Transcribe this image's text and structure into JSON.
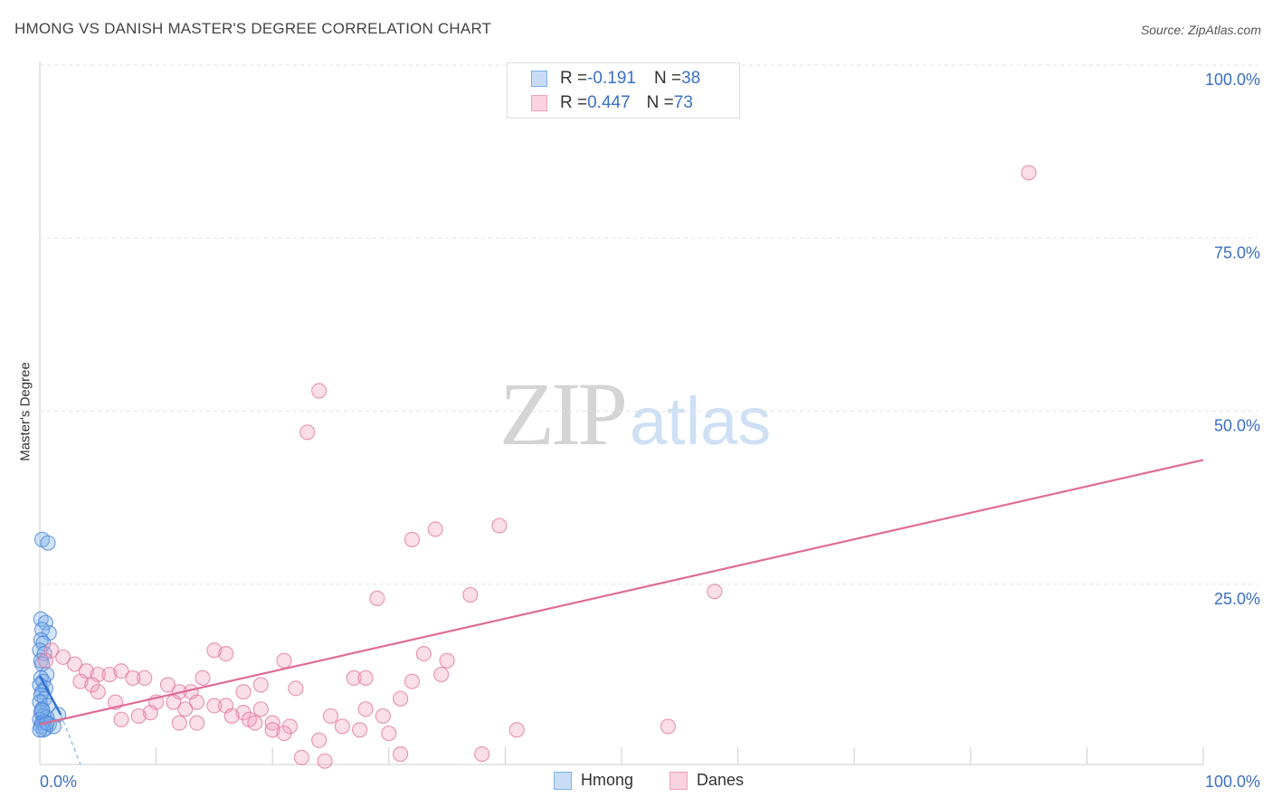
{
  "header": {
    "title": "HMONG VS DANISH MASTER'S DEGREE CORRELATION CHART",
    "source": "Source: ZipAtlas.com"
  },
  "watermark": {
    "zip": "ZIP",
    "atlas": "atlas"
  },
  "legend_top": {
    "rows": [
      {
        "r_label": "R = ",
        "r_value": "-0.191",
        "n_label": "N = ",
        "n_value": "38",
        "color": "#7ab0ec"
      },
      {
        "r_label": "R = ",
        "r_value": "0.447",
        "n_label": "N = ",
        "n_value": "73",
        "color": "#f2a0bd"
      }
    ]
  },
  "chart_data": {
    "type": "scatter",
    "title": "HMONG VS DANISH MASTER'S DEGREE CORRELATION CHART",
    "xlabel": "",
    "ylabel": "Master's Degree",
    "xlim": [
      0,
      100
    ],
    "ylim": [
      0,
      100
    ],
    "x_tick_labels": [
      "0.0%",
      "100.0%"
    ],
    "y_tick_labels": [
      "25.0%",
      "50.0%",
      "75.0%",
      "100.0%"
    ],
    "y_ticks": [
      25,
      50,
      75,
      100
    ],
    "grid": true,
    "legend_position": "bottom-center",
    "series": [
      {
        "name": "Hmong",
        "color": "#7ab0ec",
        "stroke": "#4a86d8",
        "r": -0.191,
        "n": 38,
        "trend": {
          "x": [
            0.0,
            1.8
          ],
          "y": [
            12.8,
            7.2
          ],
          "dashed_to": [
            3.5,
            0.0
          ]
        },
        "points": [
          [
            0.2,
            32.5
          ],
          [
            0.7,
            32.0
          ],
          [
            0.1,
            21.0
          ],
          [
            0.5,
            20.5
          ],
          [
            0.2,
            19.5
          ],
          [
            0.8,
            19.0
          ],
          [
            0.1,
            18.0
          ],
          [
            0.3,
            17.5
          ],
          [
            0.0,
            16.5
          ],
          [
            0.4,
            16.0
          ],
          [
            0.1,
            15.0
          ],
          [
            0.2,
            14.5
          ],
          [
            0.6,
            13.0
          ],
          [
            0.1,
            12.5
          ],
          [
            0.3,
            12.0
          ],
          [
            0.0,
            11.5
          ],
          [
            0.5,
            11.0
          ],
          [
            0.2,
            10.5
          ],
          [
            0.1,
            10.0
          ],
          [
            0.4,
            9.5
          ],
          [
            0.0,
            9.0
          ],
          [
            0.7,
            8.5
          ],
          [
            0.2,
            8.0
          ],
          [
            0.1,
            7.5
          ],
          [
            1.6,
            7.2
          ],
          [
            0.3,
            7.0
          ],
          [
            0.6,
            6.8
          ],
          [
            0.0,
            6.5
          ],
          [
            0.4,
            6.2
          ],
          [
            0.2,
            6.0
          ],
          [
            0.8,
            5.8
          ],
          [
            0.1,
            5.5
          ],
          [
            1.2,
            5.5
          ],
          [
            0.5,
            5.2
          ],
          [
            0.3,
            5.0
          ],
          [
            0.0,
            5.0
          ],
          [
            0.6,
            6.0
          ],
          [
            0.2,
            7.8
          ]
        ]
      },
      {
        "name": "Danes",
        "color": "#f2a0bd",
        "stroke": "#e07aa0",
        "r": 0.447,
        "n": 73,
        "trend": {
          "x": [
            0.0,
            100.0
          ],
          "y": [
            5.8,
            44.0
          ]
        },
        "points": [
          [
            85,
            85.5
          ],
          [
            24,
            54.0
          ],
          [
            23,
            48.0
          ],
          [
            39.5,
            34.5
          ],
          [
            34,
            34.0
          ],
          [
            32,
            32.5
          ],
          [
            58,
            25.0
          ],
          [
            29,
            24.0
          ],
          [
            37,
            24.5
          ],
          [
            15,
            16.5
          ],
          [
            16,
            16.0
          ],
          [
            33,
            16.0
          ],
          [
            35,
            15.0
          ],
          [
            21,
            15.0
          ],
          [
            1,
            16.5
          ],
          [
            2,
            15.5
          ],
          [
            0.5,
            15.0
          ],
          [
            3,
            14.5
          ],
          [
            4,
            13.5
          ],
          [
            5,
            13.0
          ],
          [
            6,
            13.0
          ],
          [
            7,
            13.5
          ],
          [
            8,
            12.5
          ],
          [
            9,
            12.5
          ],
          [
            3.5,
            12.0
          ],
          [
            4.5,
            11.5
          ],
          [
            14,
            12.5
          ],
          [
            27,
            12.5
          ],
          [
            28,
            12.5
          ],
          [
            32,
            12.0
          ],
          [
            34.5,
            13.0
          ],
          [
            19,
            11.5
          ],
          [
            11,
            11.5
          ],
          [
            22,
            11.0
          ],
          [
            12,
            10.5
          ],
          [
            13,
            10.5
          ],
          [
            5,
            10.5
          ],
          [
            17.5,
            10.5
          ],
          [
            10,
            9.0
          ],
          [
            11.5,
            9.0
          ],
          [
            13.5,
            9.0
          ],
          [
            15,
            8.5
          ],
          [
            16,
            8.5
          ],
          [
            31,
            9.5
          ],
          [
            25,
            7.0
          ],
          [
            28,
            8.0
          ],
          [
            17.5,
            7.5
          ],
          [
            19,
            8.0
          ],
          [
            12.5,
            8.0
          ],
          [
            9.5,
            7.5
          ],
          [
            6.5,
            9.0
          ],
          [
            7,
            6.5
          ],
          [
            8.5,
            7.0
          ],
          [
            16.5,
            7.0
          ],
          [
            18,
            6.5
          ],
          [
            20,
            6.0
          ],
          [
            26,
            5.5
          ],
          [
            29.5,
            7.0
          ],
          [
            12,
            6.0
          ],
          [
            13.5,
            6.0
          ],
          [
            18.5,
            6.0
          ],
          [
            21.5,
            5.5
          ],
          [
            27.5,
            5.0
          ],
          [
            30,
            4.5
          ],
          [
            41,
            5.0
          ],
          [
            54,
            5.5
          ],
          [
            20,
            5.0
          ],
          [
            24,
            3.5
          ],
          [
            21,
            4.5
          ],
          [
            31,
            1.5
          ],
          [
            38,
            1.5
          ],
          [
            22.5,
            1.0
          ],
          [
            24.5,
            0.5
          ]
        ]
      }
    ]
  }
}
